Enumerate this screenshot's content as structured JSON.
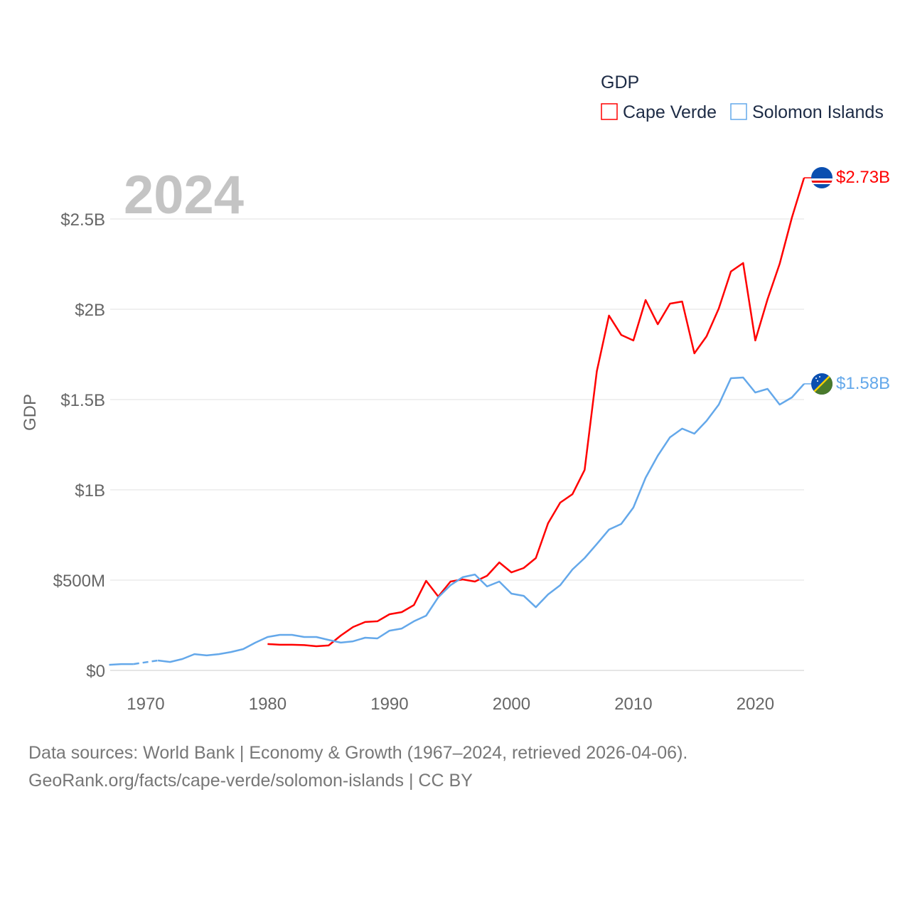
{
  "chart_data": {
    "type": "line",
    "title": "GDP",
    "year_label": "2024",
    "ylabel": "GDP",
    "xlabel": "",
    "xlim": [
      1967,
      2024
    ],
    "ylim": [
      0,
      2800
    ],
    "y_unit": "million USD",
    "grid": true,
    "legend_position": "top-right",
    "x_ticks": [
      1970,
      1980,
      1990,
      2000,
      2010,
      2020
    ],
    "y_ticks": [
      {
        "v": 0,
        "label": "$0"
      },
      {
        "v": 500,
        "label": "$500M"
      },
      {
        "v": 1000,
        "label": "$1B"
      },
      {
        "v": 1500,
        "label": "$1.5B"
      },
      {
        "v": 2000,
        "label": "$2B"
      },
      {
        "v": 2500,
        "label": "$2.5B"
      }
    ],
    "series": [
      {
        "name": "Cape Verde",
        "color": "#ff0000",
        "end_label": "$2.73B",
        "flag": "cape-verde-flag",
        "start_year": 1980,
        "values": [
          146,
          142,
          142,
          140,
          134,
          138,
          193,
          240,
          268,
          272,
          311,
          323,
          362,
          496,
          409,
          492,
          504,
          492,
          524,
          598,
          543,
          567,
          622,
          815,
          929,
          976,
          1110,
          1657,
          1965,
          1858,
          1827,
          2051,
          1917,
          2031,
          2043,
          1756,
          1850,
          2004,
          2209,
          2256,
          1827,
          2055,
          2252,
          2508,
          2728
        ]
      },
      {
        "name": "Solomon Islands",
        "color": "#64a8ea",
        "end_label": "$1.58B",
        "flag": "solomon-islands-flag",
        "start_year": 1967,
        "values": [
          31,
          35,
          35,
          null,
          55,
          47,
          63,
          90,
          83,
          90,
          102,
          118,
          154,
          185,
          197,
          197,
          185,
          185,
          169,
          154,
          161,
          181,
          177,
          220,
          232,
          272,
          303,
          405,
          472,
          516,
          531,
          465,
          492,
          425,
          413,
          350,
          421,
          472,
          559,
          622,
          700,
          780,
          811,
          902,
          1067,
          1189,
          1291,
          1339,
          1311,
          1382,
          1472,
          1618,
          1622,
          1539,
          1559,
          1472,
          1512,
          1587
        ]
      }
    ]
  },
  "footer": {
    "line1": "Data sources: World Bank | Economy & Growth (1967–2024, retrieved 2026-04-06).",
    "line2": "GeoRank.org/facts/cape-verde/solomon-islands | CC BY"
  }
}
